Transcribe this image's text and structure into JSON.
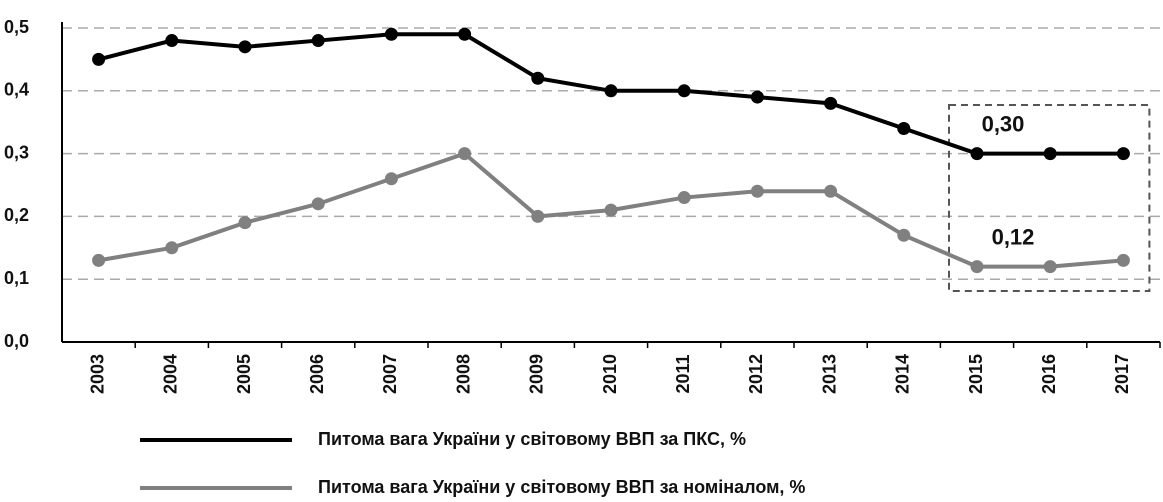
{
  "chart_data": {
    "type": "line",
    "categories": [
      "2003",
      "2004",
      "2005",
      "2006",
      "2007",
      "2008",
      "2009",
      "2010",
      "2011",
      "2012",
      "2013",
      "2014",
      "2015",
      "2016",
      "2017"
    ],
    "series": [
      {
        "name": "Питома вага України у світовому ВВП за ПКС, %",
        "color": "#000000",
        "values": [
          0.45,
          0.48,
          0.47,
          0.48,
          0.49,
          0.49,
          0.42,
          0.4,
          0.4,
          0.39,
          0.38,
          0.34,
          0.3,
          0.3,
          0.3
        ],
        "value_labels": [
          null,
          null,
          null,
          null,
          null,
          null,
          null,
          null,
          null,
          null,
          null,
          null,
          "0,30",
          null,
          null
        ]
      },
      {
        "name": "Питома вага України у світовому ВВП за номіналом, %",
        "color": "#808080",
        "values": [
          0.13,
          0.15,
          0.19,
          0.22,
          0.26,
          0.3,
          0.2,
          0.21,
          0.23,
          0.24,
          0.24,
          0.17,
          0.12,
          0.12,
          0.13
        ],
        "value_labels": [
          null,
          null,
          null,
          null,
          null,
          null,
          null,
          null,
          null,
          null,
          null,
          null,
          "0,12",
          null,
          null
        ]
      }
    ],
    "ylim": [
      0,
      0.5
    ],
    "yticks": [
      {
        "value": 0,
        "label": "0,0"
      },
      {
        "value": 0.1,
        "label": "0,1"
      },
      {
        "value": 0.2,
        "label": "0,2"
      },
      {
        "value": 0.3,
        "label": "0,3"
      },
      {
        "value": 0.4,
        "label": "0,4"
      },
      {
        "value": 0.5,
        "label": "0,5"
      }
    ],
    "grid": true
  }
}
